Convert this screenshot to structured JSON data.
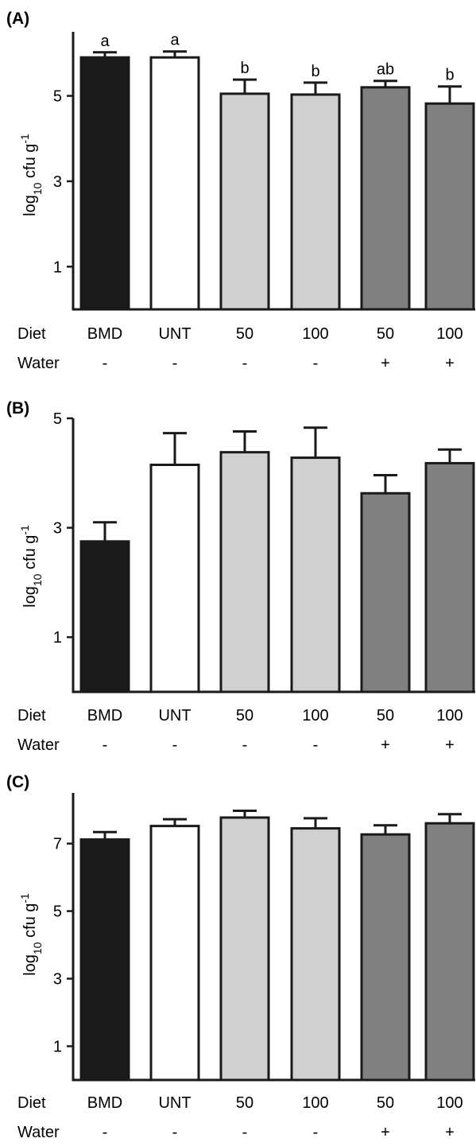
{
  "colors": {
    "BMD": "#1a1a1a",
    "UNT": "#ffffff",
    "diet": "#d0d0d0",
    "water": "#808080",
    "stroke": "#1a1a1a"
  },
  "row_labels": {
    "diet": "Diet",
    "water": "Water"
  },
  "chart_data": [
    {
      "type": "bar",
      "panel": "(A)",
      "ylabel": "log10 cfu g-1",
      "ylim": [
        0,
        6.5
      ],
      "yticks": [
        "1",
        "3",
        "5"
      ],
      "categories": [
        "BMD",
        "UNT",
        "50",
        "100",
        "50",
        "100"
      ],
      "water": [
        "-",
        "-",
        "-",
        "-",
        "+",
        "+"
      ],
      "values": [
        5.9,
        5.9,
        5.05,
        5.03,
        5.2,
        4.82
      ],
      "errors": [
        0.12,
        0.14,
        0.33,
        0.28,
        0.15,
        0.4
      ],
      "significance": [
        "a",
        "a",
        "b",
        "b",
        "ab",
        "b"
      ],
      "fill_groups": [
        "BMD",
        "UNT",
        "diet",
        "diet",
        "water",
        "water"
      ]
    },
    {
      "type": "bar",
      "panel": "(B)",
      "ylabel": "log10 cfu g-1",
      "ylim": [
        0,
        5
      ],
      "yticks": [
        "1",
        "3",
        "5"
      ],
      "categories": [
        "BMD",
        "UNT",
        "50",
        "100",
        "50",
        "100"
      ],
      "water": [
        "-",
        "-",
        "-",
        "-",
        "+",
        "+"
      ],
      "values": [
        2.75,
        4.15,
        4.38,
        4.28,
        3.63,
        4.18
      ],
      "errors": [
        0.35,
        0.58,
        0.38,
        0.55,
        0.33,
        0.25
      ],
      "significance": [],
      "fill_groups": [
        "BMD",
        "UNT",
        "diet",
        "diet",
        "water",
        "water"
      ]
    },
    {
      "type": "bar",
      "panel": "(C)",
      "ylabel": "log10 cfu g-1",
      "ylim": [
        0,
        8.5
      ],
      "yticks": [
        "1",
        "3",
        "5",
        "7"
      ],
      "categories": [
        "BMD",
        "UNT",
        "50",
        "100",
        "50",
        "100"
      ],
      "water": [
        "-",
        "-",
        "-",
        "-",
        "+",
        "+"
      ],
      "values": [
        7.12,
        7.52,
        7.77,
        7.45,
        7.27,
        7.6
      ],
      "errors": [
        0.22,
        0.2,
        0.2,
        0.3,
        0.27,
        0.27
      ],
      "significance": [],
      "fill_groups": [
        "BMD",
        "UNT",
        "diet",
        "diet",
        "water",
        "water"
      ]
    }
  ]
}
